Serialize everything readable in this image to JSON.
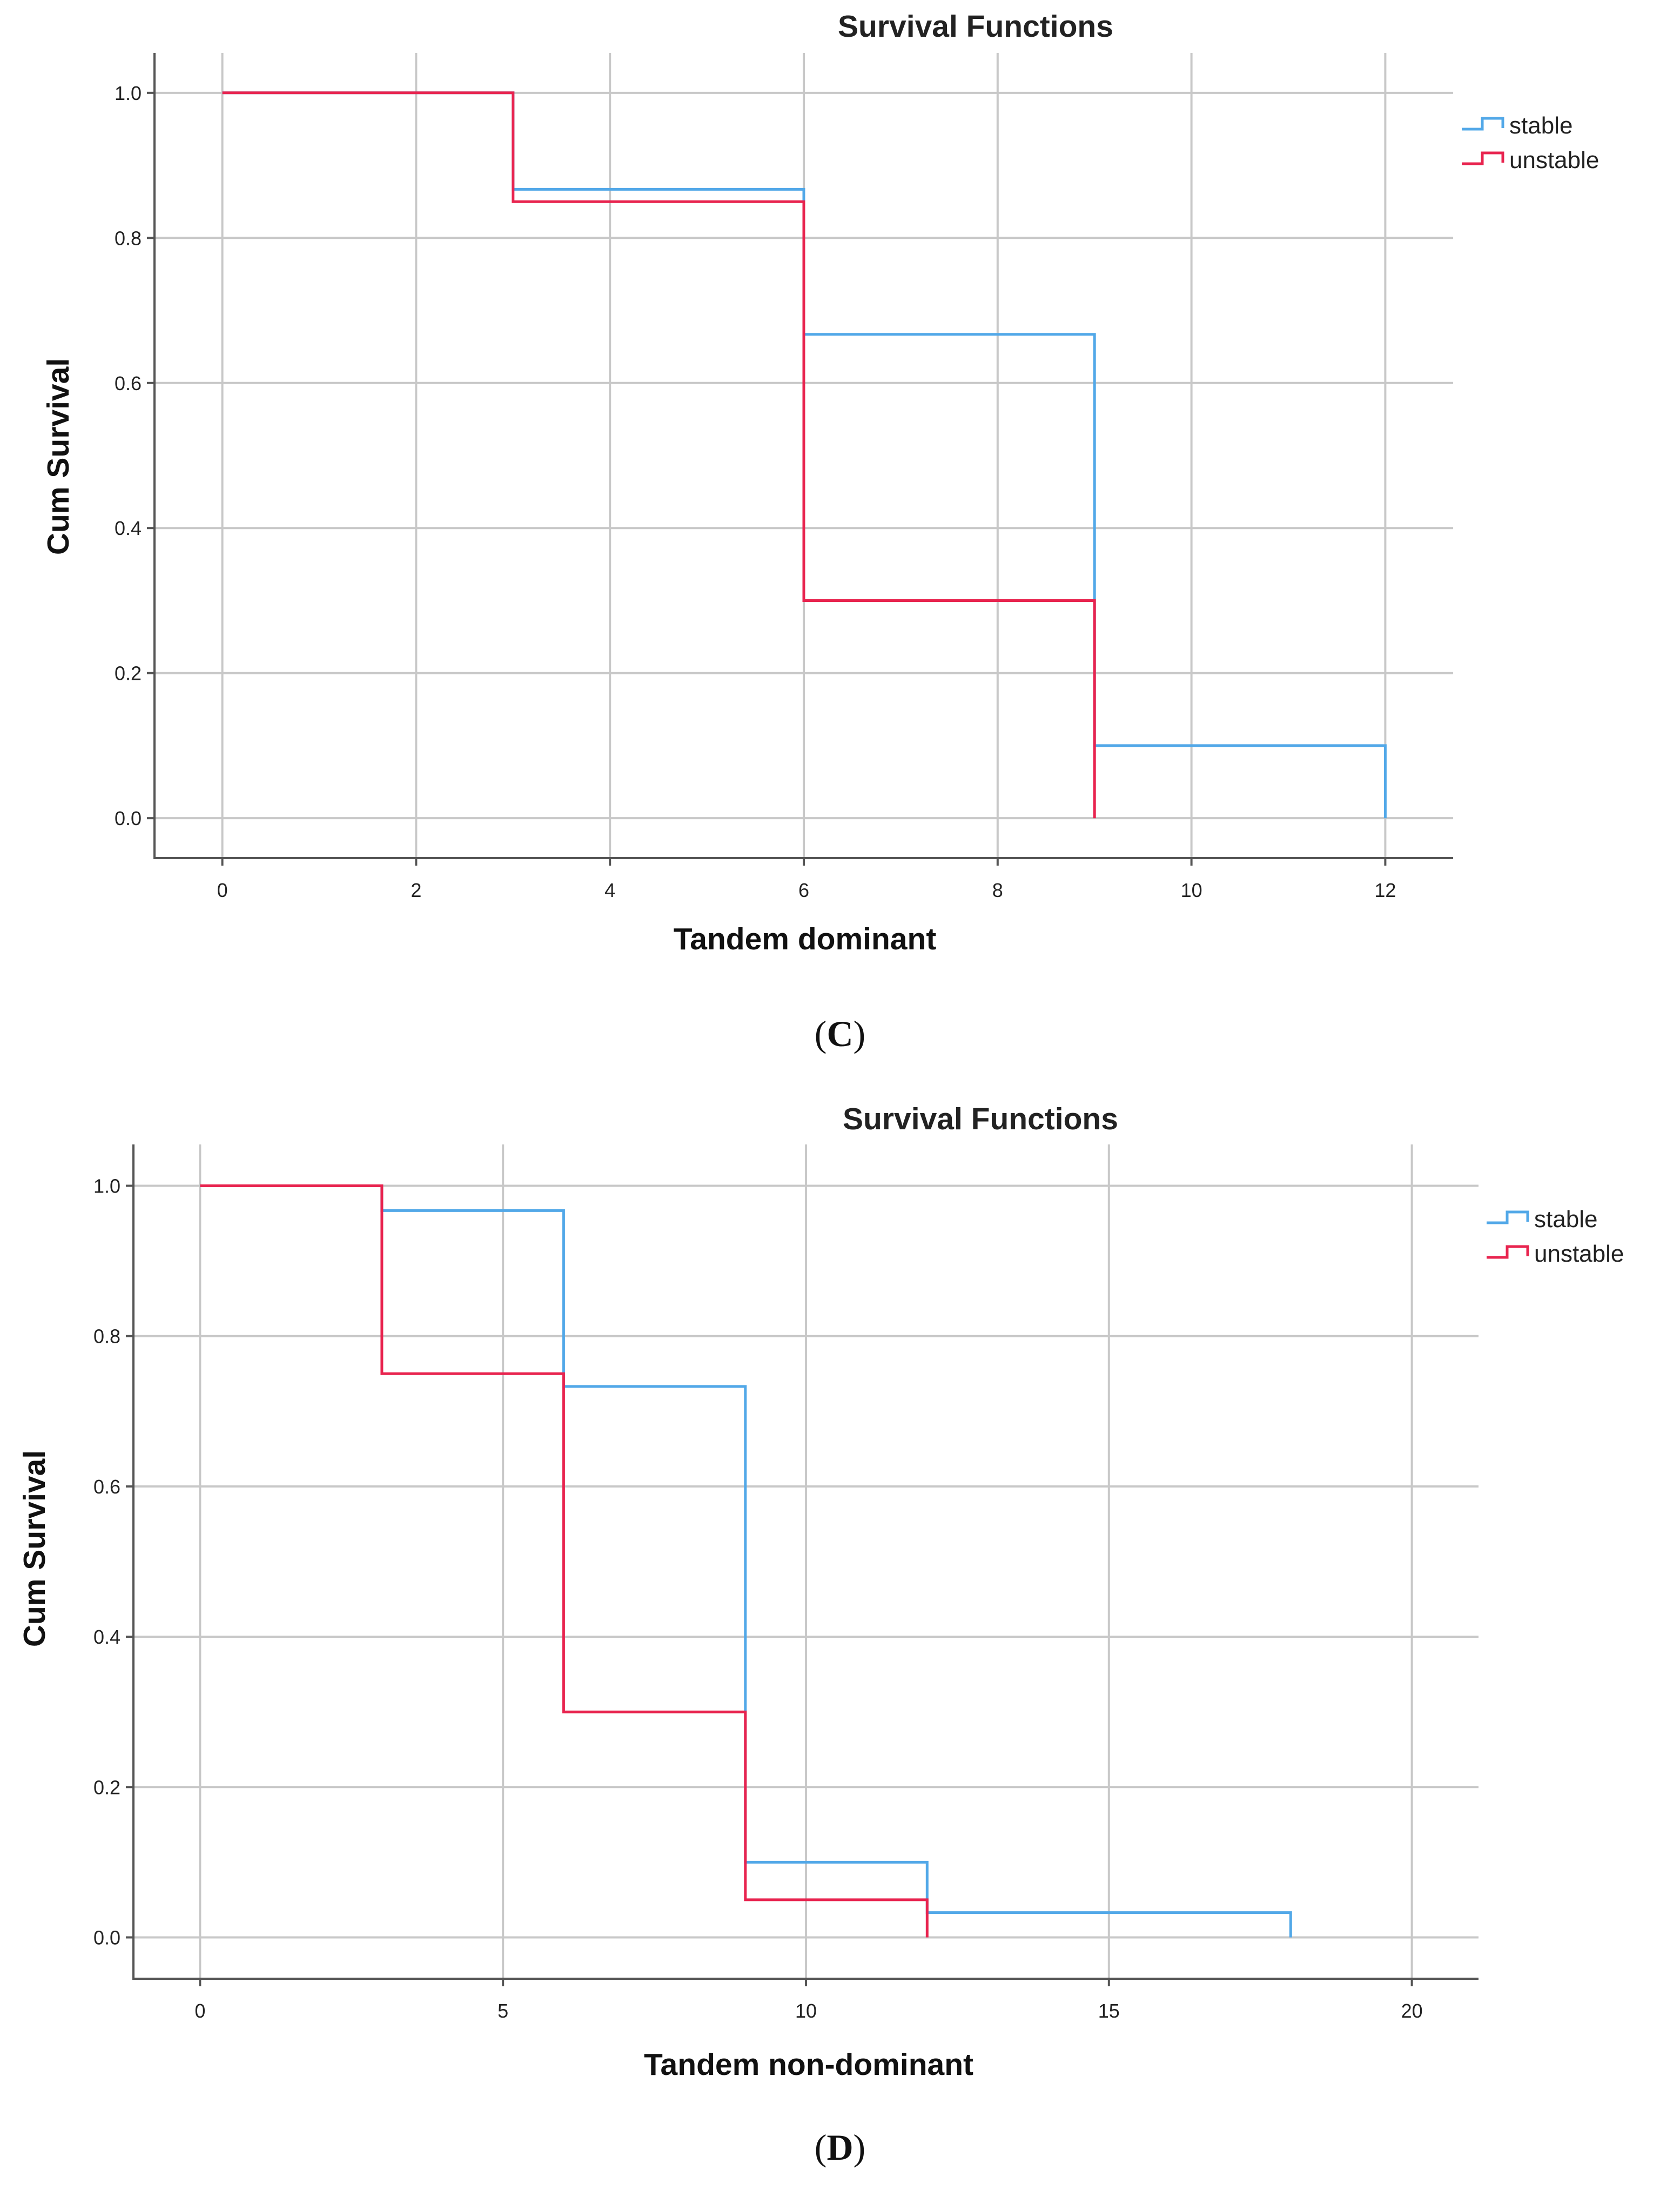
{
  "chart_data": [
    {
      "type": "line",
      "subtype": "step",
      "title": "Survival Functions",
      "xlabel": "Tandem dominant",
      "ylabel": "Cum Survival",
      "caption": "C",
      "xlim": [
        -0.7,
        12.7
      ],
      "ylim": [
        -0.055,
        1.055
      ],
      "xticks": [
        0,
        2,
        4,
        6,
        8,
        10,
        12
      ],
      "xtick_labels": [
        "0",
        "2",
        "4",
        "6",
        "8",
        "10",
        "12"
      ],
      "yticks": [
        0.0,
        0.2,
        0.4,
        0.6,
        0.8,
        1.0
      ],
      "ytick_labels": [
        "0.0",
        "0.2",
        "0.4",
        "0.6",
        "0.8",
        "1.0"
      ],
      "grid": true,
      "legend_position": "top-right",
      "series": [
        {
          "name": "stable",
          "color": "#52a8e8",
          "points": [
            [
              0,
              1.0
            ],
            [
              3,
              1.0
            ],
            [
              3,
              0.867
            ],
            [
              6,
              0.867
            ],
            [
              6,
              0.667
            ],
            [
              9,
              0.667
            ],
            [
              9,
              0.1
            ],
            [
              12,
              0.1
            ],
            [
              12,
              0.0
            ]
          ]
        },
        {
          "name": "unstable",
          "color": "#e8244f",
          "points": [
            [
              0,
              1.0
            ],
            [
              3,
              1.0
            ],
            [
              3,
              0.85
            ],
            [
              6,
              0.85
            ],
            [
              6,
              0.3
            ],
            [
              9,
              0.3
            ],
            [
              9,
              0.0
            ]
          ]
        }
      ]
    },
    {
      "type": "line",
      "subtype": "step",
      "title": "Survival Functions",
      "xlabel": "Tandem non-dominant",
      "ylabel": "Cum Survival",
      "caption": "D",
      "xlim": [
        -1.1,
        21.1
      ],
      "ylim": [
        -0.055,
        1.055
      ],
      "xticks": [
        0,
        5,
        10,
        15,
        20
      ],
      "xtick_labels": [
        "0",
        "5",
        "10",
        "15",
        "20"
      ],
      "yticks": [
        0.0,
        0.2,
        0.4,
        0.6,
        0.8,
        1.0
      ],
      "ytick_labels": [
        "0.0",
        "0.2",
        "0.4",
        "0.6",
        "0.8",
        "1.0"
      ],
      "grid": true,
      "legend_position": "top-right",
      "series": [
        {
          "name": "stable",
          "color": "#52a8e8",
          "points": [
            [
              0,
              1.0
            ],
            [
              3,
              1.0
            ],
            [
              3,
              0.967
            ],
            [
              6,
              0.967
            ],
            [
              6,
              0.733
            ],
            [
              9,
              0.733
            ],
            [
              9,
              0.1
            ],
            [
              12,
              0.1
            ],
            [
              12,
              0.033
            ],
            [
              18,
              0.033
            ],
            [
              18,
              0.0
            ]
          ]
        },
        {
          "name": "unstable",
          "color": "#e8244f",
          "points": [
            [
              0,
              1.0
            ],
            [
              3,
              1.0
            ],
            [
              3,
              0.75
            ],
            [
              6,
              0.75
            ],
            [
              6,
              0.3
            ],
            [
              9,
              0.3
            ],
            [
              9,
              0.05
            ],
            [
              12,
              0.05
            ],
            [
              12,
              0.0
            ]
          ]
        }
      ]
    }
  ]
}
